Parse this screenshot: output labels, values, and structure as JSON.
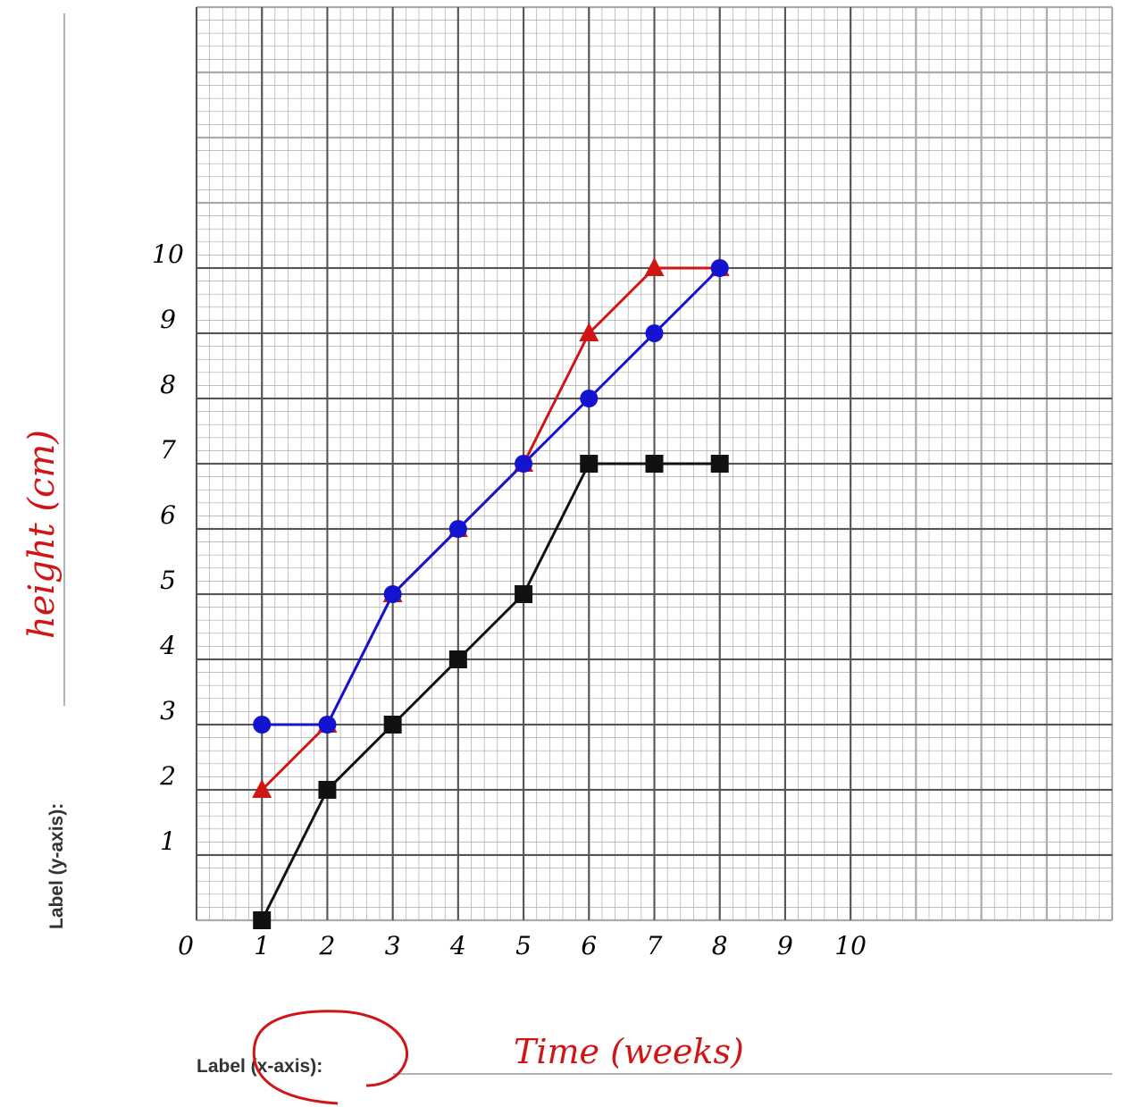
{
  "chart_data": {
    "type": "line",
    "x_label": "Time (weeks)",
    "y_label": "height (cm)",
    "form_labels": {
      "x": "Label (x-axis):",
      "y": "Label (y-axis):"
    },
    "x": [
      1,
      2,
      3,
      4,
      5,
      6,
      7,
      8
    ],
    "series": [
      {
        "color": "#d01515",
        "marker": "triangle",
        "values": [
          2,
          3,
          5,
          6,
          7,
          9,
          10,
          10
        ]
      },
      {
        "color": "#1414d0",
        "marker": "circle",
        "values": [
          3,
          3,
          5,
          6,
          7,
          8,
          9,
          10
        ]
      },
      {
        "color": "#111111",
        "marker": "square",
        "values": [
          0,
          2,
          3,
          4,
          5,
          7,
          7,
          7
        ]
      }
    ],
    "xlim": [
      0,
      14
    ],
    "ylim": [
      0,
      14
    ],
    "xticks": [
      0,
      1,
      2,
      3,
      4,
      5,
      6,
      7,
      8,
      9,
      10
    ],
    "yticks": [
      1,
      2,
      3,
      4,
      5,
      6,
      7,
      8,
      9,
      10
    ],
    "grid": true
  }
}
